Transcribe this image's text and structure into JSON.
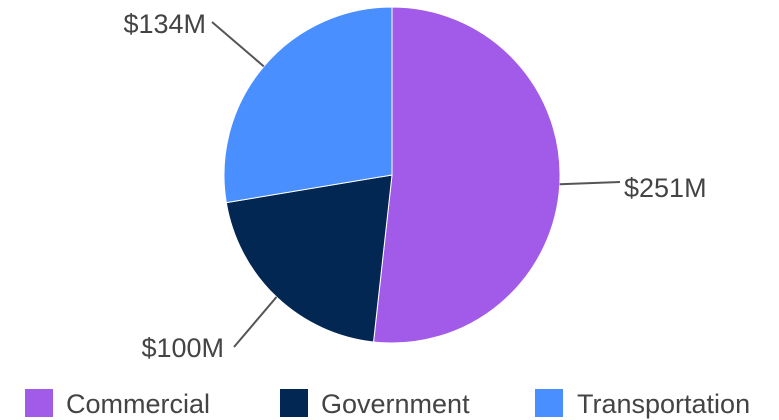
{
  "chart_data": {
    "type": "pie",
    "title": "",
    "legend_position": "bottom",
    "slices": [
      {
        "name": "Commercial",
        "value": 251,
        "label": "$251M",
        "color": "#a25ae8"
      },
      {
        "name": "Government",
        "value": 100,
        "label": "$100M",
        "color": "#022753"
      },
      {
        "name": "Transportation",
        "value": 134,
        "label": "$134M",
        "color": "#4a8fff"
      }
    ]
  }
}
